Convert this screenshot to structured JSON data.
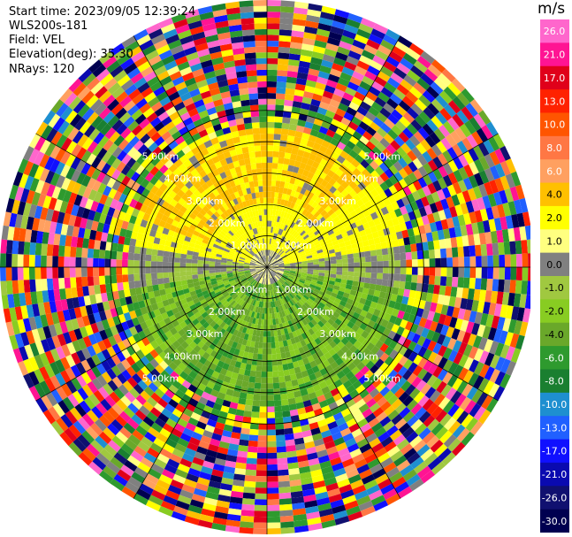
{
  "header": {
    "start_time": "Start time: 2023/09/05 12:39:24",
    "instrument": "WLS200s-181",
    "field": "Field: VEL",
    "elevation": "Elevation(deg): 35.30",
    "nrays": "NRays: 120"
  },
  "chart_data": {
    "type": "heatmap",
    "projection": "polar-ppi",
    "field": "VEL",
    "units": "m/s",
    "nrays": 120,
    "elevation_deg": 35.3,
    "range_rings_km": [
      1.0,
      2.0,
      3.0,
      4.0,
      5.0
    ],
    "range_ring_labels": [
      "1.00km",
      "2.00km",
      "3.00km",
      "4.00km",
      "5.00km"
    ],
    "colorbar": {
      "unit": "m/s",
      "ticks": [
        "26.0",
        "21.0",
        "17.0",
        "13.0",
        "10.0",
        "8.0",
        "6.0",
        "4.0",
        "2.0",
        "1.0",
        "0.0",
        "-1.0",
        "-2.0",
        "-4.0",
        "-6.0",
        "-8.0",
        "-10.0",
        "-13.0",
        "-17.0",
        "-21.0",
        "-26.0",
        "-30.0"
      ],
      "colors": [
        "#ff66cc",
        "#ff1493",
        "#e0001a",
        "#ff2200",
        "#ff5500",
        "#ff7744",
        "#ffa060",
        "#ffc000",
        "#ffff00",
        "#ffff80",
        "#808080",
        "#a0c840",
        "#88cc22",
        "#6aa82a",
        "#2e9a2e",
        "#1a7f30",
        "#1e8fd0",
        "#2060ff",
        "#1010ff",
        "#0a0ab0",
        "#101070",
        "#000050"
      ]
    },
    "pattern": "near-zero velocities (yellow/gray/green) within ~2.5 km, noisy random colors at longer ranges"
  }
}
